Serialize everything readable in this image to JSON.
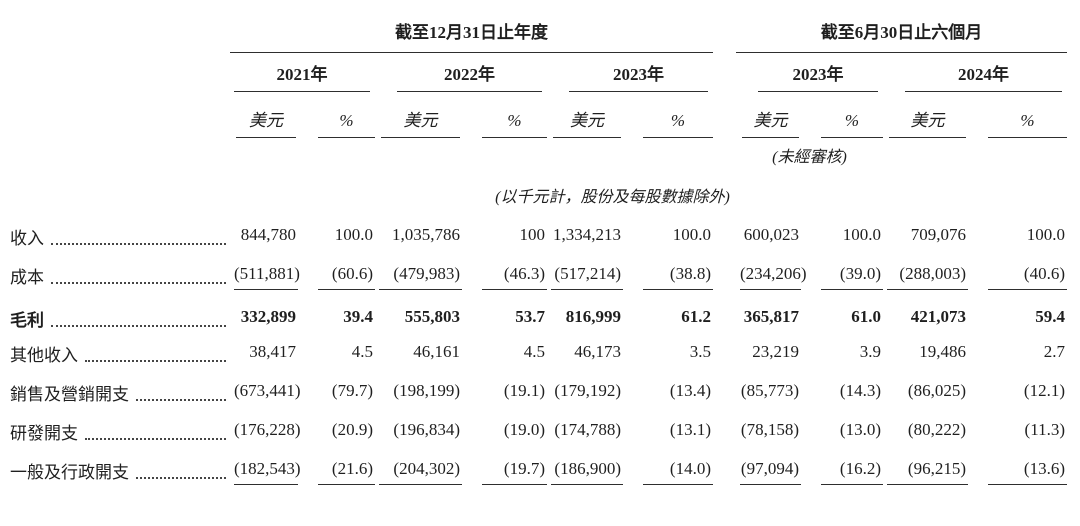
{
  "colors": {
    "background": "#ffffff",
    "text": "#1f1f1f",
    "rule_lines": "#2e2e2e"
  },
  "table": {
    "group_headers": [
      {
        "label": "截至12月31日止年度"
      },
      {
        "label": "截至6月30日止六個月"
      }
    ],
    "year_headers": [
      "2021年",
      "2022年",
      "2023年",
      "2023年",
      "2024年"
    ],
    "unit_headers": {
      "usd": "美元",
      "pct": "%"
    },
    "notes": {
      "unaudited": "(未經審核)",
      "basis": "(以千元計，股份及每股數據除外)"
    },
    "rows": [
      {
        "label": "收入",
        "bold": false,
        "rule_below": false,
        "values": [
          "844,780",
          "100.0",
          "1,035,786",
          "100",
          "1,334,213",
          "100.0",
          "600,023",
          "100.0",
          "709,076",
          "100.0"
        ]
      },
      {
        "label": "成本",
        "bold": false,
        "rule_below": true,
        "values": [
          "(511,881)",
          "(60.6)",
          "(479,983)",
          "(46.3)",
          "(517,214)",
          "(38.8)",
          "(234,206)",
          "(39.0)",
          "(288,003)",
          "(40.6)"
        ]
      },
      {
        "label": "毛利",
        "bold": true,
        "rule_below": false,
        "values": [
          "332,899",
          "39.4",
          "555,803",
          "53.7",
          "816,999",
          "61.2",
          "365,817",
          "61.0",
          "421,073",
          "59.4"
        ]
      },
      {
        "label": "其他收入",
        "bold": false,
        "rule_below": false,
        "values": [
          "38,417",
          "4.5",
          "46,161",
          "4.5",
          "46,173",
          "3.5",
          "23,219",
          "3.9",
          "19,486",
          "2.7"
        ]
      },
      {
        "label": "銷售及營銷開支",
        "bold": false,
        "rule_below": false,
        "values": [
          "(673,441)",
          "(79.7)",
          "(198,199)",
          "(19.1)",
          "(179,192)",
          "(13.4)",
          "(85,773)",
          "(14.3)",
          "(86,025)",
          "(12.1)"
        ]
      },
      {
        "label": "研發開支",
        "bold": false,
        "rule_below": false,
        "values": [
          "(176,228)",
          "(20.9)",
          "(196,834)",
          "(19.0)",
          "(174,788)",
          "(13.1)",
          "(78,158)",
          "(13.0)",
          "(80,222)",
          "(11.3)"
        ]
      },
      {
        "label": "一般及行政開支",
        "bold": false,
        "rule_below": true,
        "values": [
          "(182,543)",
          "(21.6)",
          "(204,302)",
          "(19.7)",
          "(186,900)",
          "(14.0)",
          "(97,094)",
          "(16.2)",
          "(96,215)",
          "(13.6)"
        ]
      }
    ]
  }
}
